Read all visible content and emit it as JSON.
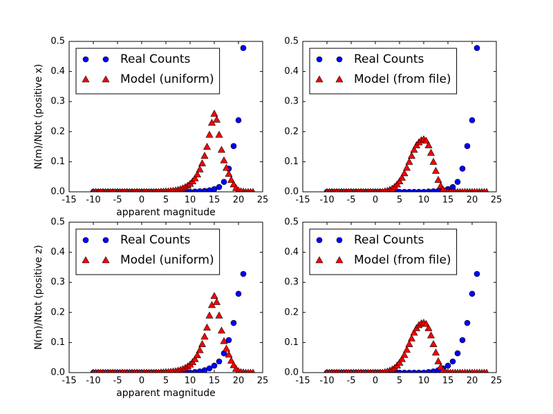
{
  "chart_data": [
    {
      "type": "scatter",
      "xlabel": "apparent magnitude",
      "ylabel": "N(m)/Ntot (positive x)",
      "xlim": [
        -15,
        25
      ],
      "ylim": [
        0,
        0.5
      ],
      "xticks": [
        -15,
        -10,
        -5,
        0,
        5,
        10,
        15,
        20,
        25
      ],
      "yticks": [
        {
          "value": 0,
          "label": "0.0"
        },
        0.1,
        0.2,
        0.3,
        0.4,
        0.5
      ],
      "legend": "upper left",
      "series": [
        {
          "name": "Real Counts",
          "color": "#0000ff",
          "marker": "o",
          "x": [
            -10,
            -9,
            -8,
            -7,
            -6,
            -5,
            -4,
            -3,
            -2,
            -1,
            0,
            1,
            2,
            3,
            4,
            5,
            6,
            7,
            8,
            9,
            10,
            11,
            12,
            13,
            14,
            15,
            16,
            17,
            18,
            19,
            20,
            21
          ],
          "values": [
            0,
            0,
            0,
            0,
            0,
            0,
            0,
            0,
            0,
            0,
            0,
            0,
            0,
            0,
            0,
            0,
            0,
            0,
            0,
            0,
            0,
            0.001,
            0.002,
            0.003,
            0.005,
            0.009,
            0.016,
            0.033,
            0.077,
            0.152,
            0.238,
            0.478
          ]
        },
        {
          "name": "Model (uniform)",
          "color": "#ff0000",
          "marker": "^",
          "x": [
            -10,
            -9.5,
            -9,
            -8.5,
            -8,
            -7.5,
            -7,
            -6.5,
            -6,
            -5.5,
            -5,
            -4.5,
            -4,
            -3.5,
            -3,
            -2.5,
            -2,
            -1.5,
            -1,
            -0.5,
            0,
            0.5,
            1,
            1.5,
            2,
            2.5,
            3,
            3.5,
            4,
            4.5,
            5,
            5.5,
            6,
            6.5,
            7,
            7.5,
            8,
            8.5,
            9,
            9.5,
            10,
            10.5,
            11,
            11.5,
            12,
            12.5,
            13,
            13.5,
            14,
            14.5,
            15,
            15.5,
            16,
            16.5,
            17,
            17.5,
            18,
            18.5,
            19,
            19.5,
            20,
            20.5,
            21,
            21.5,
            22,
            22.5,
            23
          ],
          "values": [
            0,
            0,
            0,
            0,
            0,
            0,
            0,
            0,
            0,
            0,
            0,
            0,
            0,
            0,
            0,
            0,
            0,
            0,
            0,
            0,
            0,
            0,
            0,
            0,
            0,
            0,
            0,
            0,
            0.001,
            0.001,
            0.002,
            0.002,
            0.003,
            0.004,
            0.005,
            0.007,
            0.009,
            0.012,
            0.016,
            0.021,
            0.027,
            0.035,
            0.045,
            0.058,
            0.075,
            0.095,
            0.12,
            0.15,
            0.19,
            0.23,
            0.26,
            0.24,
            0.19,
            0.14,
            0.105,
            0.08,
            0.06,
            0.04,
            0.025,
            0.013,
            0.005,
            0.002,
            0.001,
            0,
            0,
            0,
            0
          ]
        }
      ]
    },
    {
      "type": "scatter",
      "xlim": [
        -15,
        25
      ],
      "ylim": [
        0,
        0.5
      ],
      "xticks": [
        -15,
        -10,
        -5,
        0,
        5,
        10,
        15,
        20,
        25
      ],
      "yticks": [
        {
          "value": 0,
          "label": "0.0"
        },
        0.1,
        0.2,
        0.3,
        0.4,
        0.5
      ],
      "legend": "upper left",
      "series": [
        {
          "name": "Real Counts",
          "color": "#0000ff",
          "marker": "o",
          "x": [
            -10,
            -9,
            -8,
            -7,
            -6,
            -5,
            -4,
            -3,
            -2,
            -1,
            0,
            1,
            2,
            3,
            4,
            5,
            6,
            7,
            8,
            9,
            10,
            11,
            12,
            13,
            14,
            15,
            16,
            17,
            18,
            19,
            20,
            21
          ],
          "values": [
            0,
            0,
            0,
            0,
            0,
            0,
            0,
            0,
            0,
            0,
            0,
            0,
            0,
            0,
            0,
            0,
            0,
            0,
            0,
            0,
            0,
            0.001,
            0.002,
            0.003,
            0.005,
            0.009,
            0.016,
            0.033,
            0.077,
            0.152,
            0.238,
            0.478
          ]
        },
        {
          "name": "Model (from file)",
          "color": "#ff0000",
          "marker": "^",
          "x": [
            -10,
            -9.5,
            -9,
            -8.5,
            -8,
            -7.5,
            -7,
            -6.5,
            -6,
            -5.5,
            -5,
            -4.5,
            -4,
            -3.5,
            -3,
            -2.5,
            -2,
            -1.5,
            -1,
            -0.5,
            0,
            0.5,
            1,
            1.5,
            2,
            2.5,
            3,
            3.5,
            4,
            4.5,
            5,
            5.5,
            6,
            6.5,
            7,
            7.5,
            8,
            8.5,
            9,
            9.5,
            10,
            10.5,
            11,
            11.5,
            12,
            12.5,
            13,
            13.5,
            14,
            14.5,
            15,
            15.5,
            16,
            16.5,
            17,
            17.5,
            18,
            18.5,
            19,
            19.5,
            20,
            20.5,
            21,
            21.5,
            22,
            22.5,
            23
          ],
          "values": [
            0,
            0,
            0,
            0,
            0,
            0,
            0,
            0,
            0,
            0,
            0,
            0,
            0,
            0,
            0,
            0,
            0,
            0,
            0,
            0,
            0,
            0,
            0,
            0,
            0.002,
            0.004,
            0.007,
            0.011,
            0.017,
            0.025,
            0.035,
            0.047,
            0.062,
            0.08,
            0.1,
            0.12,
            0.14,
            0.155,
            0.165,
            0.172,
            0.175,
            0.17,
            0.155,
            0.13,
            0.1,
            0.07,
            0.04,
            0.02,
            0.008,
            0.003,
            0.001,
            0,
            0,
            0,
            0,
            0,
            0,
            0,
            0,
            0,
            0,
            0,
            0,
            0,
            0,
            0,
            0
          ]
        }
      ]
    },
    {
      "type": "scatter",
      "xlabel": "apparent magnitude",
      "ylabel": "N(m)/Ntot (positive z)",
      "xlim": [
        -15,
        25
      ],
      "ylim": [
        0,
        0.5
      ],
      "xticks": [
        -15,
        -10,
        -5,
        0,
        5,
        10,
        15,
        20,
        25
      ],
      "yticks": [
        {
          "value": 0,
          "label": "0.0"
        },
        0.1,
        0.2,
        0.3,
        0.4,
        0.5
      ],
      "legend": "upper left",
      "series": [
        {
          "name": "Real Counts",
          "color": "#0000ff",
          "marker": "o",
          "x": [
            -10,
            -9,
            -8,
            -7,
            -6,
            -5,
            -4,
            -3,
            -2,
            -1,
            0,
            1,
            2,
            3,
            4,
            5,
            6,
            7,
            8,
            9,
            10,
            11,
            12,
            13,
            14,
            15,
            16,
            17,
            18,
            19,
            20,
            21
          ],
          "values": [
            0,
            0,
            0,
            0,
            0,
            0,
            0,
            0,
            0,
            0,
            0,
            0,
            0,
            0,
            0,
            0,
            0,
            0,
            0,
            0,
            0,
            0.002,
            0.004,
            0.008,
            0.014,
            0.023,
            0.037,
            0.064,
            0.108,
            0.165,
            0.262,
            0.328
          ]
        },
        {
          "name": "Model (uniform)",
          "color": "#ff0000",
          "marker": "^",
          "x": [
            -10,
            -9.5,
            -9,
            -8.5,
            -8,
            -7.5,
            -7,
            -6.5,
            -6,
            -5.5,
            -5,
            -4.5,
            -4,
            -3.5,
            -3,
            -2.5,
            -2,
            -1.5,
            -1,
            -0.5,
            0,
            0.5,
            1,
            1.5,
            2,
            2.5,
            3,
            3.5,
            4,
            4.5,
            5,
            5.5,
            6,
            6.5,
            7,
            7.5,
            8,
            8.5,
            9,
            9.5,
            10,
            10.5,
            11,
            11.5,
            12,
            12.5,
            13,
            13.5,
            14,
            14.5,
            15,
            15.5,
            16,
            16.5,
            17,
            17.5,
            18,
            18.5,
            19,
            19.5,
            20,
            20.5,
            21,
            21.5,
            22,
            22.5,
            23
          ],
          "values": [
            0,
            0,
            0,
            0,
            0,
            0,
            0,
            0,
            0,
            0,
            0,
            0,
            0,
            0,
            0,
            0,
            0,
            0,
            0,
            0,
            0,
            0,
            0,
            0,
            0,
            0,
            0,
            0,
            0.001,
            0.001,
            0.002,
            0.002,
            0.003,
            0.004,
            0.005,
            0.007,
            0.009,
            0.012,
            0.016,
            0.021,
            0.027,
            0.035,
            0.045,
            0.058,
            0.075,
            0.095,
            0.12,
            0.15,
            0.19,
            0.225,
            0.255,
            0.235,
            0.19,
            0.14,
            0.105,
            0.08,
            0.06,
            0.04,
            0.025,
            0.013,
            0.005,
            0.002,
            0.001,
            0,
            0,
            0,
            0
          ]
        }
      ]
    },
    {
      "type": "scatter",
      "xlim": [
        -15,
        25
      ],
      "ylim": [
        0,
        0.5
      ],
      "xticks": [
        -15,
        -10,
        -5,
        0,
        5,
        10,
        15,
        20,
        25
      ],
      "yticks": [
        {
          "value": 0,
          "label": "0.0"
        },
        0.1,
        0.2,
        0.3,
        0.4,
        0.5
      ],
      "legend": "upper left",
      "series": [
        {
          "name": "Real Counts",
          "color": "#0000ff",
          "marker": "o",
          "x": [
            -10,
            -9,
            -8,
            -7,
            -6,
            -5,
            -4,
            -3,
            -2,
            -1,
            0,
            1,
            2,
            3,
            4,
            5,
            6,
            7,
            8,
            9,
            10,
            11,
            12,
            13,
            14,
            15,
            16,
            17,
            18,
            19,
            20,
            21
          ],
          "values": [
            0,
            0,
            0,
            0,
            0,
            0,
            0,
            0,
            0,
            0,
            0,
            0,
            0,
            0,
            0,
            0,
            0,
            0,
            0,
            0,
            0,
            0.002,
            0.004,
            0.008,
            0.014,
            0.023,
            0.037,
            0.064,
            0.108,
            0.165,
            0.262,
            0.328
          ]
        },
        {
          "name": "Model (from file)",
          "color": "#ff0000",
          "marker": "^",
          "x": [
            -10,
            -9.5,
            -9,
            -8.5,
            -8,
            -7.5,
            -7,
            -6.5,
            -6,
            -5.5,
            -5,
            -4.5,
            -4,
            -3.5,
            -3,
            -2.5,
            -2,
            -1.5,
            -1,
            -0.5,
            0,
            0.5,
            1,
            1.5,
            2,
            2.5,
            3,
            3.5,
            4,
            4.5,
            5,
            5.5,
            6,
            6.5,
            7,
            7.5,
            8,
            8.5,
            9,
            9.5,
            10,
            10.5,
            11,
            11.5,
            12,
            12.5,
            13,
            13.5,
            14,
            14.5,
            15,
            15.5,
            16,
            16.5,
            17,
            17.5,
            18,
            18.5,
            19,
            19.5,
            20,
            20.5,
            21,
            21.5,
            22,
            22.5,
            23
          ],
          "values": [
            0,
            0,
            0,
            0,
            0,
            0,
            0,
            0,
            0,
            0,
            0,
            0,
            0,
            0,
            0,
            0,
            0,
            0,
            0,
            0,
            0,
            0,
            0,
            0,
            0.002,
            0.004,
            0.007,
            0.011,
            0.016,
            0.024,
            0.033,
            0.045,
            0.059,
            0.076,
            0.095,
            0.114,
            0.133,
            0.148,
            0.158,
            0.164,
            0.166,
            0.162,
            0.148,
            0.124,
            0.095,
            0.067,
            0.038,
            0.019,
            0.008,
            0.003,
            0.001,
            0,
            0,
            0,
            0,
            0,
            0,
            0,
            0,
            0,
            0,
            0,
            0,
            0,
            0,
            0,
            0
          ]
        }
      ]
    }
  ]
}
